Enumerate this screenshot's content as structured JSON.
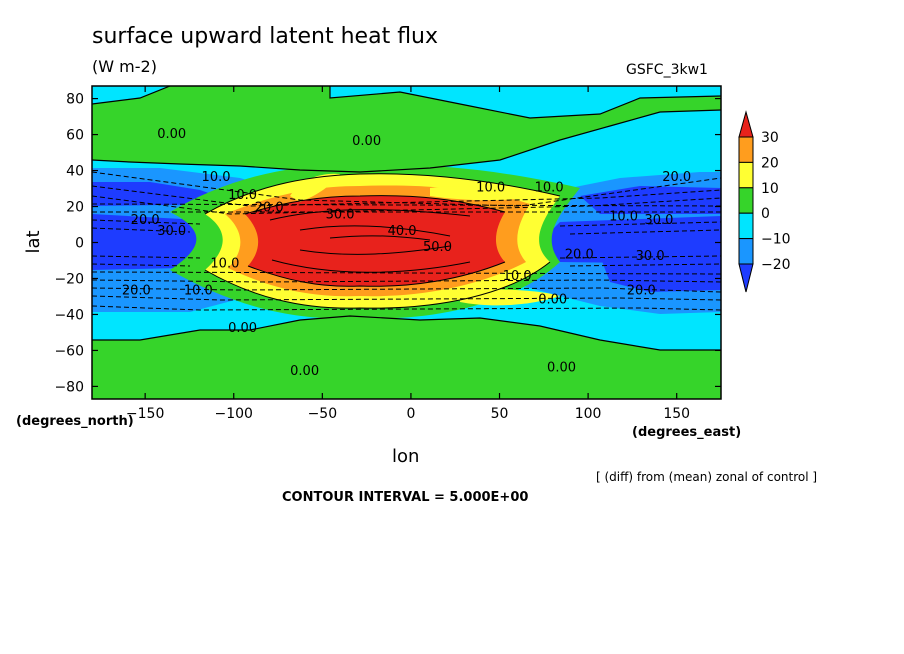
{
  "chart_data": {
    "type": "heatmap",
    "title": "surface upward latent heat flux",
    "units": "(W m-2)",
    "model": "GSFC_3kw1",
    "xlabel": "lon",
    "ylabel": "lat",
    "x_axis_name": "(degrees_east)",
    "y_axis_name": "(degrees_north)",
    "xlim": [
      -180,
      175
    ],
    "ylim": [
      -87,
      87
    ],
    "x_ticks": [
      -150,
      -100,
      -50,
      0,
      50,
      100,
      150
    ],
    "x_tick_labels": [
      "−150",
      "−100",
      "−50",
      "0",
      "50",
      "100",
      "150"
    ],
    "y_ticks": [
      -80,
      -60,
      -40,
      -20,
      0,
      20,
      40,
      60,
      80
    ],
    "y_tick_labels": [
      "−80",
      "−60",
      "−40",
      "−20",
      "0",
      "20",
      "40",
      "60",
      "80"
    ],
    "colorbar": {
      "levels": [
        "30",
        "20",
        "10",
        "0",
        "−10",
        "−20"
      ],
      "bins": [
        {
          "range": "> 30",
          "color": "#e8221c"
        },
        {
          "range": "20 to 30",
          "color": "#ff9d1e"
        },
        {
          "range": "10 to 20",
          "color": "#ffff33"
        },
        {
          "range": "0 to 10",
          "color": "#36d42a"
        },
        {
          "range": "-10 to 0",
          "color": "#00e5ff"
        },
        {
          "range": "-20 to -10",
          "color": "#1a96ff"
        },
        {
          "range": "< -20",
          "color": "#1e3cff"
        }
      ]
    },
    "contour_labels": [
      {
        "text": "0.00",
        "lon": -135,
        "lat": 61
      },
      {
        "text": "0.00",
        "lon": -25,
        "lat": 57
      },
      {
        "text": "10.0",
        "lon": -110,
        "lat": 37
      },
      {
        "text": "10.0",
        "lon": -95,
        "lat": 27
      },
      {
        "text": "20.0",
        "lon": -80,
        "lat": 20
      },
      {
        "text": "30.0",
        "lon": -40,
        "lat": 16
      },
      {
        "text": "40.0",
        "lon": -5,
        "lat": 7
      },
      {
        "text": "50.0",
        "lon": 15,
        "lat": -2
      },
      {
        "text": "10.0",
        "lon": 45,
        "lat": 31
      },
      {
        "text": "10.0",
        "lon": 78,
        "lat": 31
      },
      {
        "text": "20.0",
        "lon": 150,
        "lat": 37
      },
      {
        "text": "10.0",
        "lon": 120,
        "lat": 15
      },
      {
        "text": "30.0",
        "lon": 140,
        "lat": 13
      },
      {
        "text": "20.0",
        "lon": -150,
        "lat": 13
      },
      {
        "text": "30.0",
        "lon": -135,
        "lat": 7
      },
      {
        "text": "20.0",
        "lon": 95,
        "lat": -6
      },
      {
        "text": "30.0",
        "lon": 135,
        "lat": -7
      },
      {
        "text": "10.0",
        "lon": -105,
        "lat": -11
      },
      {
        "text": "10.0",
        "lon": 60,
        "lat": -18
      },
      {
        "text": "20.0",
        "lon": -155,
        "lat": -26
      },
      {
        "text": "10.0",
        "lon": -120,
        "lat": -26
      },
      {
        "text": "20.0",
        "lon": 130,
        "lat": -26
      },
      {
        "text": "0.00",
        "lon": 80,
        "lat": -31
      },
      {
        "text": "0.00",
        "lon": -95,
        "lat": -47
      },
      {
        "text": "0.00",
        "lon": -60,
        "lat": -71
      },
      {
        "text": "0.00",
        "lon": 85,
        "lat": -69
      }
    ]
  },
  "footer": {
    "comment": "[ (diff) from (mean) zonal of control ]",
    "contour_interval": "CONTOUR INTERVAL = 5.000E+00"
  }
}
